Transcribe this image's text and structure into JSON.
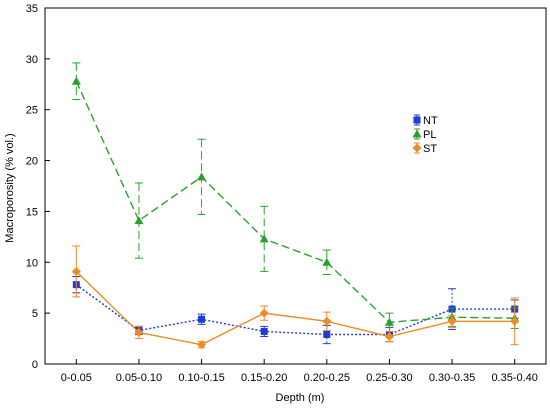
{
  "chart_data": {
    "type": "line",
    "xlabel": "Depth (m)",
    "ylabel": "Macroporosity (% vol.)",
    "ylim": [
      0,
      35
    ],
    "yticks": [
      0,
      5,
      10,
      15,
      20,
      25,
      30,
      35
    ],
    "categories": [
      "0-0.05",
      "0.05-0.10",
      "0.10-0.15",
      "0.15-0.20",
      "0.20-0.25",
      "0.25-0.30",
      "0.30-0.35",
      "0.35-0.40"
    ],
    "grid": false,
    "legend_position": "center-right",
    "series": [
      {
        "name": "NT",
        "color": "#1f3bd6",
        "line_style": "dotted",
        "marker": "square",
        "values": [
          7.8,
          3.3,
          4.4,
          3.2,
          2.9,
          2.9,
          5.4,
          5.4
        ],
        "error": [
          0.8,
          0.4,
          0.5,
          0.5,
          0.9,
          0.7,
          2.0,
          0.9
        ]
      },
      {
        "name": "PL",
        "color": "#2ca02c",
        "line_style": "dashed",
        "marker": "triangle",
        "values": [
          27.8,
          14.1,
          18.4,
          12.3,
          10.0,
          4.1,
          4.6,
          4.5
        ],
        "error": [
          1.8,
          3.7,
          3.7,
          3.2,
          1.2,
          0.9,
          0.9,
          1.0
        ]
      },
      {
        "name": "ST",
        "color": "#f08a24",
        "line_style": "solid",
        "marker": "diamond",
        "values": [
          9.1,
          3.1,
          1.9,
          5.0,
          4.2,
          2.7,
          4.2,
          4.2
        ],
        "error": [
          2.5,
          0.6,
          0.3,
          0.7,
          0.9,
          0.5,
          0.6,
          2.3
        ]
      }
    ]
  }
}
